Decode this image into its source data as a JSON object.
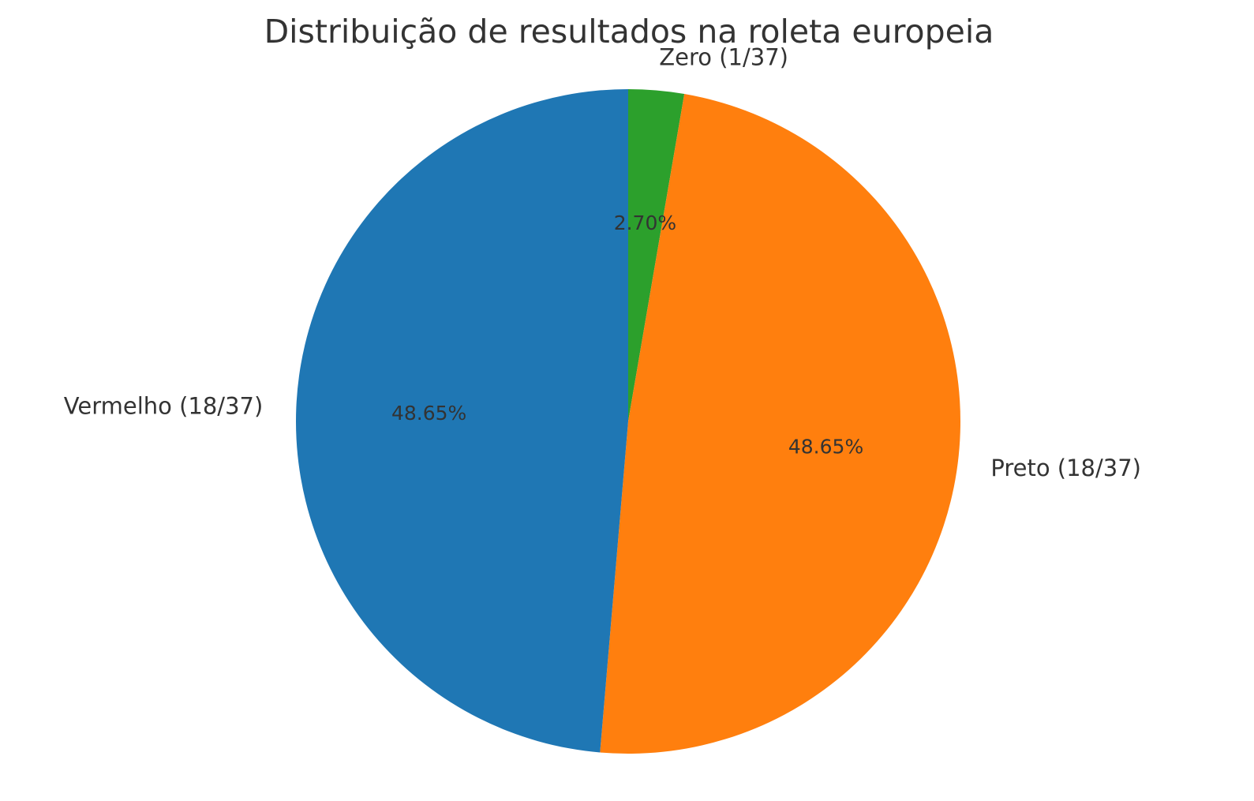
{
  "chart_data": {
    "type": "pie",
    "title": "Distribuição de resultados na roleta europeia",
    "start_angle_deg": 90,
    "direction": "clockwise",
    "slices": [
      {
        "label": "Zero (1/37)",
        "value": 1,
        "pct_label": "2.70%",
        "color": "#2ca02c"
      },
      {
        "label": "Preto (18/37)",
        "value": 18,
        "pct_label": "48.65%",
        "color": "#ff7f0e"
      },
      {
        "label": "Vermelho (18/37)",
        "value": 18,
        "pct_label": "48.65%",
        "color": "#1f77b4"
      }
    ]
  }
}
